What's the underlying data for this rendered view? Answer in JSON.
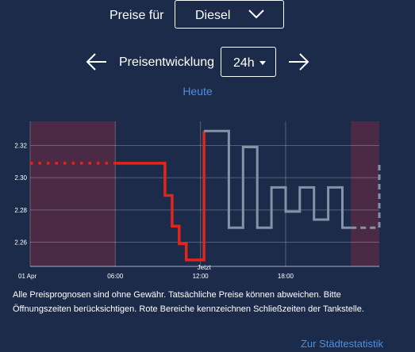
{
  "header": {
    "fuel_label": "Preise für",
    "fuel_selected": "Diesel",
    "trend_label": "Preisentwicklung",
    "range_selected": "24h",
    "today_label": "Heute"
  },
  "icons": {
    "prev": "arrow-left-icon",
    "next": "arrow-right-icon",
    "dropdown": "chevron-down-icon",
    "range_caret": "caret-down-icon"
  },
  "colors": {
    "background": "#1c2b4a",
    "actual_price": "#e1251b",
    "forecast_price": "#8593a8",
    "closed_area": "#4a2a45",
    "link": "#4a90e2"
  },
  "chart_data": {
    "type": "line",
    "x_start_label": "01 Apr",
    "x_tick_labels": [
      "01 Apr",
      "06:00",
      "12:00",
      "18:00"
    ],
    "now_label": "Jetzt",
    "now_hour": 12.25,
    "xlim": [
      0,
      24.6
    ],
    "ylim": [
      2.245,
      2.335
    ],
    "y_ticks": [
      2.26,
      2.28,
      2.3,
      2.32
    ],
    "y_tick_labels": [
      "2.26",
      "2.28",
      "2.30",
      "2.32"
    ],
    "closed_periods": [
      [
        0,
        6
      ],
      [
        22.6,
        24.6
      ]
    ],
    "series": [
      {
        "style": "dotted",
        "x": [
          0,
          6
        ],
        "y": [
          2.309,
          2.309
        ]
      },
      {
        "style": "solid",
        "x": [
          6,
          9.5,
          9.5,
          10,
          10,
          10.5,
          10.5,
          11,
          11,
          12.25,
          12.25
        ],
        "y": [
          2.309,
          2.309,
          2.289,
          2.289,
          2.27,
          2.27,
          2.259,
          2.259,
          2.249,
          2.249,
          2.329
        ]
      },
      {
        "style": "forecast",
        "x": [
          12.25,
          14,
          14,
          15,
          15,
          16,
          16,
          17,
          17,
          18,
          18,
          19,
          19,
          20,
          20,
          21,
          21,
          22,
          22,
          22.6
        ],
        "y": [
          2.329,
          2.329,
          2.269,
          2.269,
          2.319,
          2.319,
          2.269,
          2.269,
          2.294,
          2.294,
          2.279,
          2.279,
          2.294,
          2.294,
          2.274,
          2.274,
          2.294,
          2.294,
          2.269,
          2.269
        ]
      },
      {
        "style": "forecast-dashed",
        "x": [
          22.6,
          24.6,
          24.6
        ],
        "y": [
          2.269,
          2.269,
          2.309
        ]
      }
    ]
  },
  "footer": {
    "note": "Alle Preisprognosen sind ohne Gewähr. Tatsächliche Preise können abweichen. Bitte Öffnungszeiten berücksichtigen. Rote Bereiche kennzeichnen Schließzeiten der Tankstelle.",
    "stats_link": "Zur Städtestatistik"
  }
}
